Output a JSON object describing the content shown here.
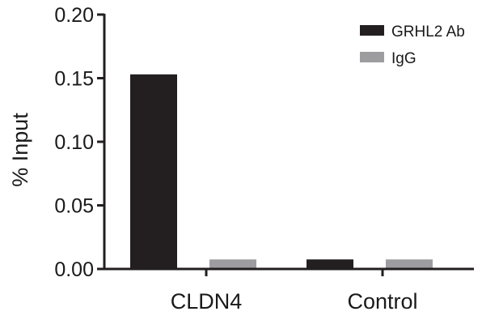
{
  "chart_data": {
    "type": "bar",
    "categories": [
      "CLDN4",
      "Control"
    ],
    "series": [
      {
        "name": "GRHL2 Ab",
        "values": [
          0.153,
          0.0075
        ],
        "color": "#231f20"
      },
      {
        "name": "IgG",
        "values": [
          0.0075,
          0.0075
        ],
        "color": "#9d9d9f"
      }
    ],
    "ylabel": "% Input",
    "ylim": [
      0,
      0.2
    ],
    "yticks": [
      "0.00",
      "0.05",
      "0.10",
      "0.15",
      "0.20"
    ],
    "ytick_values": [
      0,
      0.05,
      0.1,
      0.15,
      0.2
    ],
    "legend_position": "top-right",
    "grid": false
  }
}
